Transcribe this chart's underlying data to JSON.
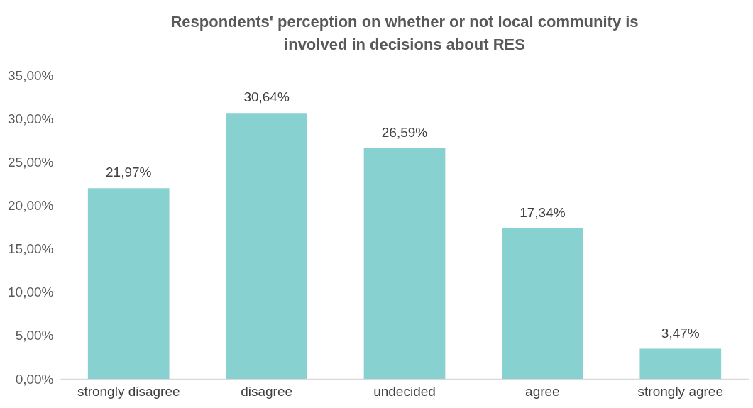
{
  "chart_data": {
    "type": "bar",
    "title": "Respondents' perception on whether or not local community is involved in decisions about RES",
    "categories": [
      "strongly disagree",
      "disagree",
      "undecided",
      "agree",
      "strongly agree"
    ],
    "values": [
      21.97,
      30.64,
      26.59,
      17.34,
      3.47
    ],
    "value_labels": [
      "21,97%",
      "30,64%",
      "26,59%",
      "17,34%",
      "3,47%"
    ],
    "color": "#88d1d1",
    "ylim": [
      0,
      35
    ],
    "yticks": [
      {
        "value": 0,
        "label": "0,00%"
      },
      {
        "value": 5,
        "label": "5,00%"
      },
      {
        "value": 10,
        "label": "10,00%"
      },
      {
        "value": 15,
        "label": "15,00%"
      },
      {
        "value": 20,
        "label": "20,00%"
      },
      {
        "value": 25,
        "label": "25,00%"
      },
      {
        "value": 30,
        "label": "30,00%"
      },
      {
        "value": 35,
        "label": "35,00%"
      }
    ],
    "grid": false
  }
}
